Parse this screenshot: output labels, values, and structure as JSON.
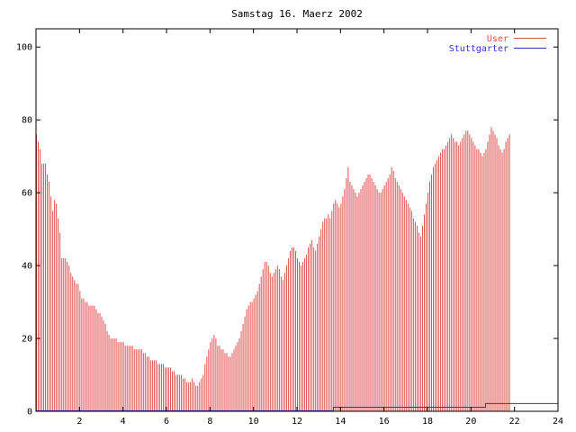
{
  "chart_data": {
    "type": "bar",
    "title": "Samstag 16. Maerz 2002",
    "xlabel": "",
    "ylabel": "",
    "xlim": [
      0,
      24
    ],
    "ylim": [
      0,
      105
    ],
    "x_ticks": [
      2,
      4,
      6,
      8,
      10,
      12,
      14,
      16,
      18,
      20,
      22,
      24
    ],
    "y_ticks": [
      0,
      20,
      40,
      60,
      80,
      100
    ],
    "grid": false,
    "legend_position": "top-right",
    "series": [
      {
        "name": "User",
        "color": "#e05050",
        "style": "impulses",
        "x_step_minutes": 5,
        "values": [
          76,
          74,
          72,
          68,
          68,
          68,
          65,
          63,
          59,
          55,
          58,
          57,
          53,
          49,
          42,
          42,
          42,
          41,
          40,
          38,
          37,
          36,
          35,
          35,
          33,
          31,
          31,
          30,
          30,
          29,
          29,
          29,
          29,
          28,
          27,
          27,
          26,
          25,
          24,
          22,
          21,
          20,
          20,
          20,
          20,
          19,
          19,
          19,
          19,
          18,
          18,
          18,
          18,
          18,
          17,
          17,
          17,
          17,
          17,
          16,
          16,
          15,
          15,
          14,
          14,
          14,
          14,
          13,
          13,
          13,
          13,
          12,
          12,
          12,
          12,
          11,
          11,
          10,
          10,
          10,
          10,
          9,
          9,
          8,
          8,
          8,
          9,
          8,
          7,
          7,
          8,
          9,
          10,
          13,
          15,
          17,
          19,
          20,
          21,
          20,
          18,
          18,
          17,
          17,
          16,
          16,
          15,
          15,
          16,
          17,
          18,
          19,
          20,
          22,
          24,
          26,
          28,
          29,
          30,
          30,
          31,
          32,
          33,
          35,
          37,
          39,
          41,
          41,
          40,
          38,
          37,
          38,
          39,
          40,
          39,
          37,
          36,
          38,
          40,
          42,
          44,
          45,
          45,
          44,
          42,
          41,
          40,
          41,
          42,
          43,
          45,
          46,
          47,
          45,
          44,
          46,
          48,
          50,
          52,
          53,
          53,
          54,
          53,
          55,
          57,
          58,
          57,
          56,
          57,
          59,
          61,
          64,
          67,
          63,
          62,
          61,
          60,
          59,
          60,
          61,
          62,
          63,
          64,
          65,
          65,
          64,
          63,
          62,
          61,
          60,
          60,
          61,
          62,
          63,
          64,
          65,
          67,
          66,
          64,
          63,
          62,
          61,
          60,
          59,
          58,
          57,
          56,
          55,
          53,
          52,
          51,
          49,
          48,
          51,
          54,
          57,
          60,
          63,
          65,
          67,
          68,
          69,
          70,
          71,
          72,
          72,
          73,
          74,
          75,
          76,
          75,
          74,
          74,
          73,
          74,
          75,
          76,
          77,
          77,
          76,
          75,
          74,
          73,
          72,
          72,
          71,
          70,
          71,
          72,
          74,
          76,
          78,
          77,
          76,
          75,
          73,
          72,
          71,
          72,
          74,
          75,
          76
        ]
      },
      {
        "name": "Stuttgarter",
        "color": "#3030d0",
        "style": "steps",
        "points": [
          [
            0,
            0
          ],
          [
            13.67,
            0
          ],
          [
            13.67,
            1
          ],
          [
            20.67,
            1
          ],
          [
            20.67,
            2
          ],
          [
            24,
            2
          ]
        ]
      }
    ]
  }
}
